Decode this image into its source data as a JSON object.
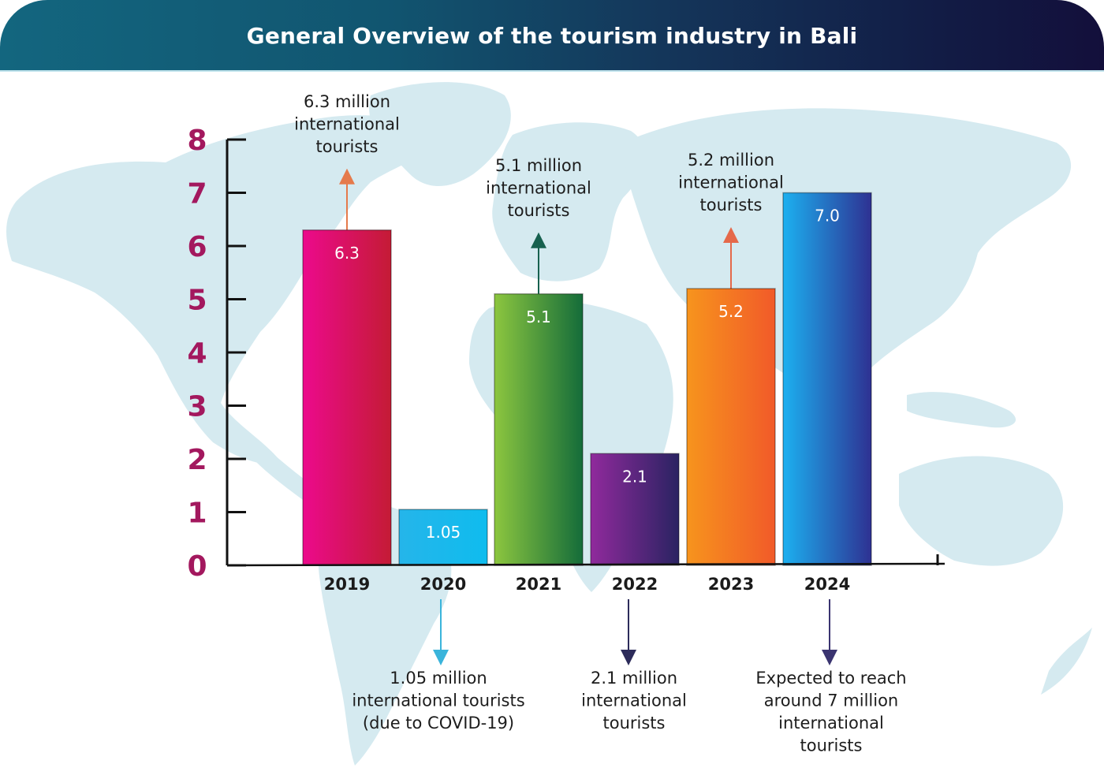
{
  "header": {
    "title": "General Overview of the tourism industry in Bali"
  },
  "colors": {
    "header_start": "#13667f",
    "header_end": "#130f3b",
    "map_land": "#d5eaf0",
    "ytick": "#a3185e"
  },
  "background": {
    "icon": "world-map"
  },
  "chart_data": {
    "type": "bar",
    "title": "General Overview of the tourism industry in Bali",
    "xlabel": "",
    "ylabel": "",
    "unit": "million international tourists",
    "categories": [
      "2019",
      "2020",
      "2021",
      "2022",
      "2023",
      "2024"
    ],
    "values": [
      6.3,
      1.05,
      5.1,
      2.1,
      5.2,
      7.0
    ],
    "value_labels": [
      "6.3",
      "1.05",
      "5.1",
      "2.1",
      "5.2",
      "7.0"
    ],
    "ylim": [
      0,
      8
    ],
    "yticks": [
      "0",
      "1",
      "2",
      "3",
      "4",
      "5",
      "6",
      "7",
      "8"
    ],
    "grid": false,
    "legend": "none",
    "bar_colors": [
      [
        "#ec0a8c",
        "#c41b35"
      ],
      [
        "#25b5ea",
        "#0fbcee"
      ],
      [
        "#8cc63f",
        "#146c3a"
      ],
      [
        "#902a9c",
        "#2a2362"
      ],
      [
        "#f7941d",
        "#f15a29"
      ],
      [
        "#1cb0f0",
        "#2e3192"
      ]
    ],
    "annotations": [
      {
        "category": "2019",
        "position": "above",
        "arrow_color": "#e57a4b",
        "lines": [
          "6.3 million",
          "international",
          "tourists"
        ]
      },
      {
        "category": "2020",
        "position": "below",
        "arrow_color": "#3ab4db",
        "lines": [
          "1.05 million",
          "international tourists",
          "(due to COVID-19)"
        ]
      },
      {
        "category": "2021",
        "position": "above",
        "arrow_color": "#17614f",
        "lines": [
          "5.1 million",
          "international",
          "tourists"
        ]
      },
      {
        "category": "2022",
        "position": "below",
        "arrow_color": "#2c2b5a",
        "lines": [
          "2.1 million",
          "international",
          "tourists"
        ]
      },
      {
        "category": "2023",
        "position": "above",
        "arrow_color": "#e5694a",
        "lines": [
          "5.2 million",
          "international",
          "tourists"
        ]
      },
      {
        "category": "2024",
        "position": "below",
        "arrow_color": "#3a3470",
        "lines": [
          "Expected to reach",
          "around 7 million",
          "international",
          "tourists"
        ]
      }
    ]
  }
}
